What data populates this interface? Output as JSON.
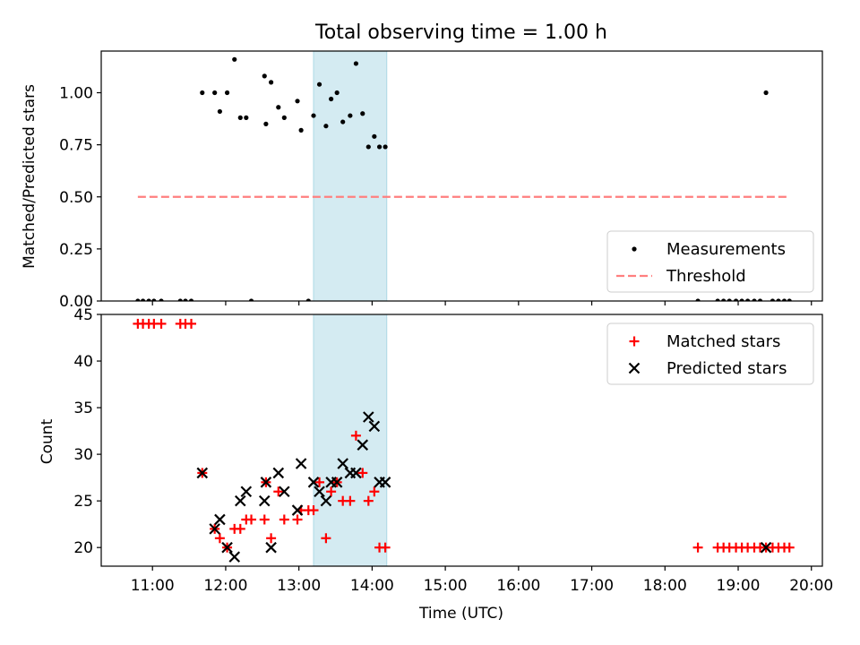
{
  "chart_data": {
    "type": "scatter",
    "title": "Total observing time = 1.00 h",
    "xlabel": "Time (UTC)",
    "x_unit": "hours UTC",
    "xlim": [
      10.3,
      20.15
    ],
    "xtick_values": [
      11,
      12,
      13,
      14,
      15,
      16,
      17,
      18,
      19,
      20
    ],
    "xtick_labels": [
      "11:00",
      "12:00",
      "13:00",
      "14:00",
      "15:00",
      "16:00",
      "17:00",
      "18:00",
      "19:00",
      "20:00"
    ],
    "observing_window": [
      13.2,
      14.2
    ],
    "colors": {
      "window": "#add8e6",
      "threshold": "#ff7f7f",
      "matched": "#ff0000",
      "predicted": "#000000",
      "measurements": "#000000"
    },
    "panels": [
      {
        "name": "ratio",
        "ylabel": "Matched/Predicted stars",
        "ylim": [
          0,
          1.2
        ],
        "yticks": [
          0.0,
          0.25,
          0.5,
          0.75,
          1.0
        ],
        "ytick_labels": [
          "0.00",
          "0.25",
          "0.50",
          "0.75",
          "1.00"
        ],
        "legend": {
          "location": "lower right",
          "entries": [
            "Measurements",
            "Threshold"
          ]
        },
        "threshold": {
          "name": "Threshold",
          "y": 0.5,
          "x_range": [
            10.8,
            19.7
          ]
        },
        "series": [
          {
            "name": "Measurements",
            "marker": "dot",
            "points": [
              [
                10.8,
                0
              ],
              [
                10.87,
                0
              ],
              [
                10.95,
                0
              ],
              [
                11.02,
                0
              ],
              [
                11.12,
                0
              ],
              [
                11.38,
                0
              ],
              [
                11.45,
                0
              ],
              [
                11.53,
                0
              ],
              [
                11.68,
                1.0
              ],
              [
                11.85,
                1.0
              ],
              [
                11.92,
                0.91
              ],
              [
                12.02,
                1.0
              ],
              [
                12.12,
                1.16
              ],
              [
                12.2,
                0.88
              ],
              [
                12.28,
                0.88
              ],
              [
                12.35,
                0
              ],
              [
                12.53,
                1.08
              ],
              [
                12.55,
                0.85
              ],
              [
                12.62,
                1.05
              ],
              [
                12.72,
                0.93
              ],
              [
                12.8,
                0.88
              ],
              [
                12.98,
                0.96
              ],
              [
                13.03,
                0.82
              ],
              [
                13.13,
                0
              ],
              [
                13.2,
                0.89
              ],
              [
                13.28,
                1.04
              ],
              [
                13.37,
                0.84
              ],
              [
                13.44,
                0.97
              ],
              [
                13.52,
                1.0
              ],
              [
                13.6,
                0.86
              ],
              [
                13.7,
                0.89
              ],
              [
                13.78,
                1.14
              ],
              [
                13.87,
                0.9
              ],
              [
                13.95,
                0.74
              ],
              [
                14.03,
                0.79
              ],
              [
                14.1,
                0.74
              ],
              [
                14.18,
                0.74
              ],
              [
                18.45,
                0
              ],
              [
                18.72,
                0
              ],
              [
                18.8,
                0
              ],
              [
                18.88,
                0
              ],
              [
                18.97,
                0
              ],
              [
                19.05,
                0
              ],
              [
                19.13,
                0
              ],
              [
                19.22,
                0
              ],
              [
                19.3,
                0
              ],
              [
                19.38,
                1.0
              ],
              [
                19.47,
                0
              ],
              [
                19.55,
                0
              ],
              [
                19.63,
                0
              ],
              [
                19.7,
                0
              ]
            ]
          }
        ]
      },
      {
        "name": "counts",
        "ylabel": "Count",
        "ylim": [
          18,
          45
        ],
        "yticks": [
          20,
          25,
          30,
          35,
          40,
          45
        ],
        "ytick_labels": [
          "20",
          "25",
          "30",
          "35",
          "40",
          "45"
        ],
        "legend": {
          "location": "upper right",
          "entries": [
            "Matched stars",
            "Predicted stars"
          ]
        },
        "series": [
          {
            "name": "Matched stars",
            "marker": "plus",
            "points": [
              [
                10.8,
                44
              ],
              [
                10.87,
                44
              ],
              [
                10.95,
                44
              ],
              [
                11.02,
                44
              ],
              [
                11.12,
                44
              ],
              [
                11.38,
                44
              ],
              [
                11.45,
                44
              ],
              [
                11.53,
                44
              ],
              [
                11.68,
                28
              ],
              [
                11.85,
                22
              ],
              [
                11.92,
                21
              ],
              [
                12.02,
                20
              ],
              [
                12.12,
                22
              ],
              [
                12.2,
                22
              ],
              [
                12.28,
                23
              ],
              [
                12.35,
                23
              ],
              [
                12.53,
                23
              ],
              [
                12.55,
                27
              ],
              [
                12.62,
                21
              ],
              [
                12.72,
                26
              ],
              [
                12.8,
                23
              ],
              [
                12.98,
                23
              ],
              [
                13.03,
                24
              ],
              [
                13.13,
                24
              ],
              [
                13.2,
                24
              ],
              [
                13.28,
                27
              ],
              [
                13.37,
                21
              ],
              [
                13.44,
                26
              ],
              [
                13.52,
                27
              ],
              [
                13.6,
                25
              ],
              [
                13.7,
                25
              ],
              [
                13.78,
                32
              ],
              [
                13.87,
                28
              ],
              [
                13.95,
                25
              ],
              [
                14.03,
                26
              ],
              [
                14.1,
                20
              ],
              [
                14.18,
                20
              ],
              [
                18.45,
                20
              ],
              [
                18.72,
                20
              ],
              [
                18.8,
                20
              ],
              [
                18.88,
                20
              ],
              [
                18.97,
                20
              ],
              [
                19.05,
                20
              ],
              [
                19.13,
                20
              ],
              [
                19.22,
                20
              ],
              [
                19.3,
                20
              ],
              [
                19.38,
                20
              ],
              [
                19.47,
                20
              ],
              [
                19.55,
                20
              ],
              [
                19.63,
                20
              ],
              [
                19.7,
                20
              ]
            ]
          },
          {
            "name": "Predicted stars",
            "marker": "x",
            "points": [
              [
                11.68,
                28
              ],
              [
                11.85,
                22
              ],
              [
                11.92,
                23
              ],
              [
                12.02,
                20
              ],
              [
                12.12,
                19
              ],
              [
                12.2,
                25
              ],
              [
                12.28,
                26
              ],
              [
                12.55,
                27
              ],
              [
                12.53,
                25
              ],
              [
                12.62,
                20
              ],
              [
                12.72,
                28
              ],
              [
                12.8,
                26
              ],
              [
                12.98,
                24
              ],
              [
                13.03,
                29
              ],
              [
                13.2,
                27
              ],
              [
                13.28,
                26
              ],
              [
                13.37,
                25
              ],
              [
                13.44,
                27
              ],
              [
                13.52,
                27
              ],
              [
                13.6,
                29
              ],
              [
                13.7,
                28
              ],
              [
                13.78,
                28
              ],
              [
                13.87,
                31
              ],
              [
                13.95,
                34
              ],
              [
                14.03,
                33
              ],
              [
                14.1,
                27
              ],
              [
                14.18,
                27
              ],
              [
                19.38,
                20
              ]
            ]
          }
        ]
      }
    ]
  }
}
